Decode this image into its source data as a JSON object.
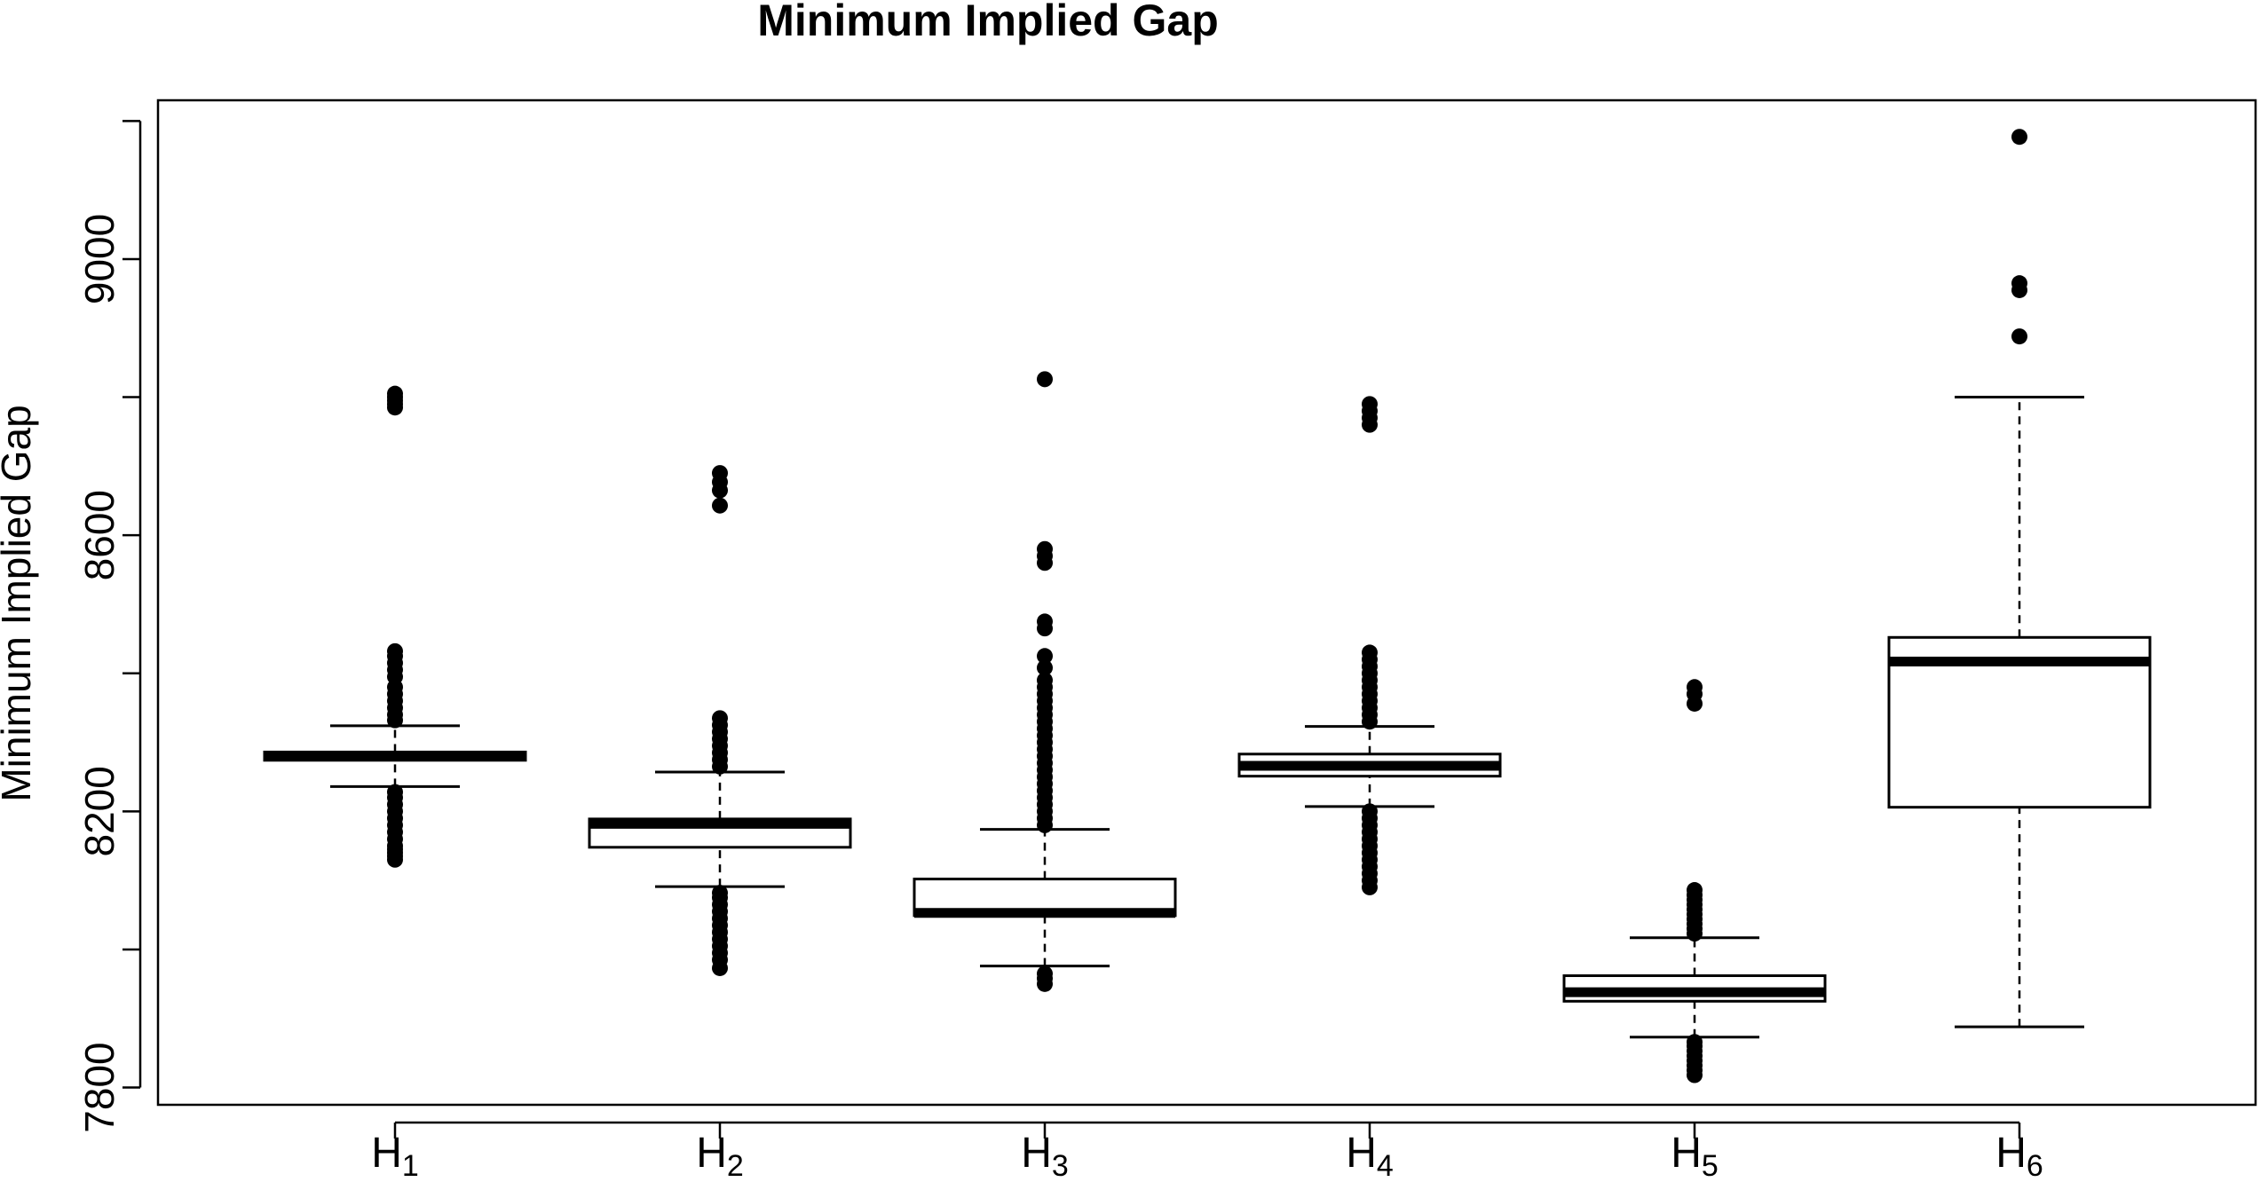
{
  "chart_data": {
    "type": "box",
    "title": "Minimum Implied Gap",
    "xlabel": "",
    "ylabel": "Minimum Implied Gap",
    "ylim": [
      7775,
      9230
    ],
    "yticks": [
      7800,
      8200,
      8600,
      9000
    ],
    "ytick_labels": [
      "7800",
      "8200",
      "8600",
      "9000"
    ],
    "grid": false,
    "categories": [
      {
        "base": "H",
        "sub": "1"
      },
      {
        "base": "H",
        "sub": "2"
      },
      {
        "base": "H",
        "sub": "3"
      },
      {
        "base": "H",
        "sub": "4"
      },
      {
        "base": "H",
        "sub": "5"
      },
      {
        "base": "H",
        "sub": "6"
      }
    ],
    "boxes": [
      {
        "whisker_low": 8236,
        "q1": 8274,
        "median": 8280,
        "q3": 8286,
        "whisker_high": 8324,
        "outliers": [
          8130,
          8135,
          8140,
          8145,
          8150,
          8160,
          8170,
          8180,
          8190,
          8200,
          8210,
          8220,
          8228,
          8332,
          8340,
          8350,
          8360,
          8370,
          8380,
          8395,
          8405,
          8415,
          8425,
          8432,
          8785,
          8790,
          8795,
          8800,
          8805
        ]
      },
      {
        "whisker_low": 8091,
        "q1": 8148,
        "median": 8182,
        "q3": 8189,
        "whisker_high": 8257,
        "outliers": [
          7973,
          7985,
          7995,
          8005,
          8015,
          8025,
          8035,
          8045,
          8055,
          8065,
          8075,
          8082,
          8265,
          8275,
          8285,
          8295,
          8305,
          8315,
          8325,
          8335,
          8643,
          8665,
          8677,
          8690
        ]
      },
      {
        "whisker_low": 7976,
        "q1": 8049,
        "median": 8053,
        "q3": 8102,
        "whisker_high": 8174,
        "outliers": [
          7950,
          7958,
          7965,
          8180,
          8190,
          8200,
          8210,
          8220,
          8230,
          8240,
          8250,
          8260,
          8270,
          8280,
          8290,
          8300,
          8310,
          8320,
          8330,
          8340,
          8350,
          8360,
          8370,
          8380,
          8390,
          8408,
          8425,
          8465,
          8475,
          8560,
          8570,
          8580,
          8826
        ]
      },
      {
        "whisker_low": 8207,
        "q1": 8251,
        "median": 8266,
        "q3": 8283,
        "whisker_high": 8323,
        "outliers": [
          8090,
          8100,
          8110,
          8120,
          8130,
          8140,
          8150,
          8160,
          8170,
          8180,
          8190,
          8200,
          8330,
          8340,
          8350,
          8360,
          8370,
          8380,
          8390,
          8400,
          8410,
          8420,
          8430,
          8760,
          8770,
          8780,
          8790
        ]
      },
      {
        "whisker_low": 7873,
        "q1": 7925,
        "median": 7938,
        "q3": 7962,
        "whisker_high": 8017,
        "outliers": [
          7818,
          7825,
          7832,
          7839,
          7846,
          7853,
          7860,
          7866,
          8023,
          8030,
          8037,
          8044,
          8051,
          8058,
          8065,
          8072,
          8079,
          8086,
          8356,
          8370,
          8380
        ]
      },
      {
        "whisker_low": 7888,
        "q1": 8206,
        "median": 8417,
        "q3": 8452,
        "whisker_high": 8800,
        "outliers": [
          8888,
          8955,
          8965,
          9177
        ]
      }
    ]
  }
}
